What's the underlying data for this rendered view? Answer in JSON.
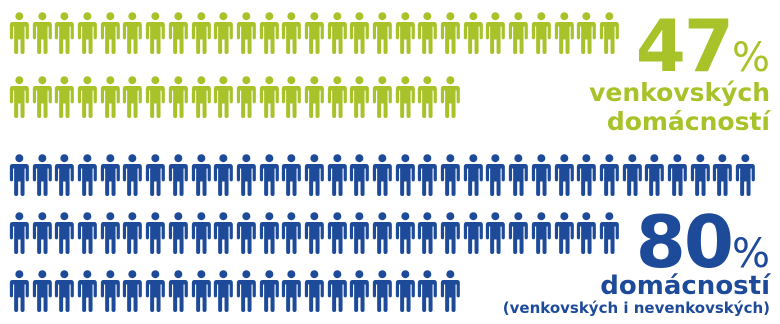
{
  "rural": {
    "percent": "47",
    "percent_sign": "%",
    "label_line1": "venkovských",
    "label_line2": "domácností",
    "color": "#a8c22a",
    "icon_count": 47,
    "icon_name": "person-icon"
  },
  "all": {
    "percent": "80",
    "percent_sign": "%",
    "label": "domácností",
    "sublabel": "(venkovských i nevenkovských)",
    "color": "#1d4a99",
    "icon_count": 80,
    "icon_name": "person-icon"
  }
}
